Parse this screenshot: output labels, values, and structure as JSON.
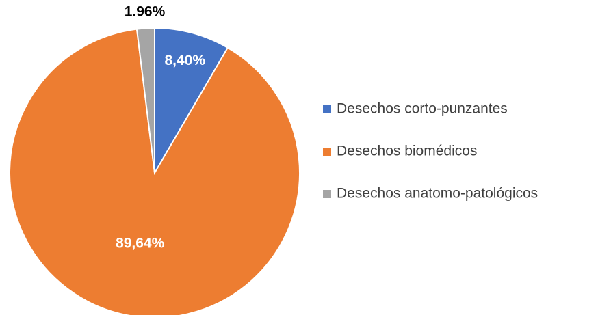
{
  "chart_data": {
    "type": "pie",
    "categories": [
      "Desechos corto-punzantes",
      "Desechos biomédicos",
      "Desechos anatomo-patológicos"
    ],
    "values": [
      8.4,
      89.64,
      1.96
    ],
    "value_labels": [
      "8,40%",
      "89,64%",
      "1.96%"
    ],
    "colors": [
      "#4472c4",
      "#ed7d31",
      "#a5a5a5"
    ],
    "legend": "right"
  }
}
